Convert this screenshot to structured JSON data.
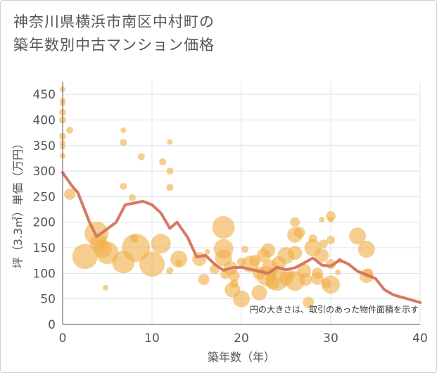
{
  "title_line1": "神奈川県横浜市南区中村町の",
  "title_line2": "築年数別中古マンション価格",
  "chart_data": {
    "type": "scatter",
    "title": "神奈川県横浜市南区中村町の築年数別中古マンション価格",
    "xlabel": "築年数（年）",
    "ylabel": "坪（3.3㎡）単価（万円）",
    "xlim": [
      0,
      40
    ],
    "ylim": [
      0,
      475
    ],
    "xticks": [
      0,
      10,
      20,
      30,
      40
    ],
    "yticks": [
      0,
      50,
      100,
      150,
      200,
      250,
      300,
      350,
      400,
      450
    ],
    "grid": true,
    "annotation": "円の大きさは、取引のあった物件面積を示す",
    "colors": {
      "bubble": "#f0b04a",
      "line": "#d4725c"
    },
    "series": [
      {
        "kind": "bubbles",
        "points": [
          {
            "x": 0,
            "y": 460,
            "s": 4
          },
          {
            "x": 0,
            "y": 438,
            "s": 4
          },
          {
            "x": 0,
            "y": 432,
            "s": 4
          },
          {
            "x": 0,
            "y": 415,
            "s": 5
          },
          {
            "x": 0,
            "y": 400,
            "s": 5
          },
          {
            "x": 0,
            "y": 368,
            "s": 5
          },
          {
            "x": 0,
            "y": 355,
            "s": 4
          },
          {
            "x": 0,
            "y": 348,
            "s": 4
          },
          {
            "x": 0,
            "y": 330,
            "s": 4
          },
          {
            "x": 0.8,
            "y": 380,
            "s": 5
          },
          {
            "x": 0.8,
            "y": 255,
            "s": 8
          },
          {
            "x": 2.5,
            "y": 133,
            "s": 18
          },
          {
            "x": 3.8,
            "y": 178,
            "s": 17
          },
          {
            "x": 4,
            "y": 160,
            "s": 12
          },
          {
            "x": 4.5,
            "y": 148,
            "s": 13
          },
          {
            "x": 5,
            "y": 140,
            "s": 16
          },
          {
            "x": 4.8,
            "y": 72,
            "s": 4
          },
          {
            "x": 6.8,
            "y": 380,
            "s": 4
          },
          {
            "x": 6.8,
            "y": 356,
            "s": 5
          },
          {
            "x": 6.8,
            "y": 270,
            "s": 5
          },
          {
            "x": 6.8,
            "y": 122,
            "s": 16
          },
          {
            "x": 7.8,
            "y": 248,
            "s": 5
          },
          {
            "x": 8.8,
            "y": 328,
            "s": 5
          },
          {
            "x": 8,
            "y": 168,
            "s": 6
          },
          {
            "x": 8.2,
            "y": 150,
            "s": 20
          },
          {
            "x": 10,
            "y": 118,
            "s": 18
          },
          {
            "x": 11,
            "y": 158,
            "s": 14
          },
          {
            "x": 11.2,
            "y": 318,
            "s": 5
          },
          {
            "x": 12,
            "y": 357,
            "s": 4
          },
          {
            "x": 12,
            "y": 300,
            "s": 5
          },
          {
            "x": 12,
            "y": 268,
            "s": 5
          },
          {
            "x": 12,
            "y": 105,
            "s": 5
          },
          {
            "x": 13,
            "y": 120,
            "s": 5
          },
          {
            "x": 13,
            "y": 128,
            "s": 12
          },
          {
            "x": 15.3,
            "y": 128,
            "s": 10
          },
          {
            "x": 15.8,
            "y": 88,
            "s": 8
          },
          {
            "x": 16.2,
            "y": 142,
            "s": 4
          },
          {
            "x": 17,
            "y": 108,
            "s": 7
          },
          {
            "x": 18,
            "y": 190,
            "s": 16
          },
          {
            "x": 18,
            "y": 148,
            "s": 14
          },
          {
            "x": 18,
            "y": 130,
            "s": 12
          },
          {
            "x": 18.2,
            "y": 98,
            "s": 7
          },
          {
            "x": 18.8,
            "y": 110,
            "s": 10
          },
          {
            "x": 19.2,
            "y": 95,
            "s": 8
          },
          {
            "x": 19,
            "y": 68,
            "s": 11
          },
          {
            "x": 19.2,
            "y": 80,
            "s": 6
          },
          {
            "x": 20,
            "y": 122,
            "s": 6
          },
          {
            "x": 20,
            "y": 50,
            "s": 12
          },
          {
            "x": 20.4,
            "y": 147,
            "s": 5
          },
          {
            "x": 21,
            "y": 118,
            "s": 12
          },
          {
            "x": 21.5,
            "y": 125,
            "s": 8
          },
          {
            "x": 22,
            "y": 100,
            "s": 9
          },
          {
            "x": 22,
            "y": 62,
            "s": 11
          },
          {
            "x": 22.5,
            "y": 135,
            "s": 10
          },
          {
            "x": 22.8,
            "y": 95,
            "s": 14
          },
          {
            "x": 23,
            "y": 145,
            "s": 10
          },
          {
            "x": 23.2,
            "y": 110,
            "s": 12
          },
          {
            "x": 23.5,
            "y": 82,
            "s": 10
          },
          {
            "x": 24,
            "y": 88,
            "s": 16
          },
          {
            "x": 24.2,
            "y": 120,
            "s": 10
          },
          {
            "x": 25,
            "y": 135,
            "s": 12
          },
          {
            "x": 25,
            "y": 90,
            "s": 10
          },
          {
            "x": 25.5,
            "y": 98,
            "s": 6
          },
          {
            "x": 26,
            "y": 85,
            "s": 14
          },
          {
            "x": 26,
            "y": 140,
            "s": 10
          },
          {
            "x": 26,
            "y": 175,
            "s": 11
          },
          {
            "x": 26,
            "y": 200,
            "s": 7
          },
          {
            "x": 26.5,
            "y": 180,
            "s": 8
          },
          {
            "x": 27,
            "y": 105,
            "s": 10
          },
          {
            "x": 27.2,
            "y": 88,
            "s": 9
          },
          {
            "x": 27.5,
            "y": 43,
            "s": 8
          },
          {
            "x": 28,
            "y": 168,
            "s": 6
          },
          {
            "x": 28,
            "y": 150,
            "s": 12
          },
          {
            "x": 28.5,
            "y": 90,
            "s": 9
          },
          {
            "x": 28.5,
            "y": 100,
            "s": 8
          },
          {
            "x": 29,
            "y": 205,
            "s": 4
          },
          {
            "x": 29,
            "y": 135,
            "s": 10
          },
          {
            "x": 29.2,
            "y": 158,
            "s": 6
          },
          {
            "x": 29.5,
            "y": 80,
            "s": 7
          },
          {
            "x": 30,
            "y": 212,
            "s": 7
          },
          {
            "x": 30,
            "y": 205,
            "s": 4
          },
          {
            "x": 30,
            "y": 165,
            "s": 6
          },
          {
            "x": 30,
            "y": 118,
            "s": 7
          },
          {
            "x": 30,
            "y": 78,
            "s": 13
          },
          {
            "x": 30.8,
            "y": 102,
            "s": 4
          },
          {
            "x": 31,
            "y": 125,
            "s": 4
          },
          {
            "x": 33,
            "y": 173,
            "s": 12
          },
          {
            "x": 34,
            "y": 147,
            "s": 12
          },
          {
            "x": 34,
            "y": 95,
            "s": 10
          },
          {
            "x": 34.2,
            "y": 100,
            "s": 7
          }
        ]
      },
      {
        "kind": "line",
        "name": "",
        "points": [
          {
            "x": 0,
            "y": 297
          },
          {
            "x": 1,
            "y": 272
          },
          {
            "x": 1.7,
            "y": 258
          },
          {
            "x": 3,
            "y": 200
          },
          {
            "x": 3.8,
            "y": 172
          },
          {
            "x": 5,
            "y": 187
          },
          {
            "x": 6,
            "y": 200
          },
          {
            "x": 7,
            "y": 234
          },
          {
            "x": 9,
            "y": 241
          },
          {
            "x": 10,
            "y": 234
          },
          {
            "x": 11,
            "y": 218
          },
          {
            "x": 12,
            "y": 188
          },
          {
            "x": 12.8,
            "y": 200
          },
          {
            "x": 14,
            "y": 170
          },
          {
            "x": 15,
            "y": 132
          },
          {
            "x": 16,
            "y": 135
          },
          {
            "x": 17,
            "y": 118
          },
          {
            "x": 18,
            "y": 106
          },
          {
            "x": 19,
            "y": 111
          },
          {
            "x": 20,
            "y": 112
          },
          {
            "x": 21,
            "y": 108
          },
          {
            "x": 22,
            "y": 104
          },
          {
            "x": 23,
            "y": 100
          },
          {
            "x": 24,
            "y": 112
          },
          {
            "x": 25,
            "y": 107
          },
          {
            "x": 26,
            "y": 111
          },
          {
            "x": 27,
            "y": 120
          },
          {
            "x": 28,
            "y": 130
          },
          {
            "x": 29,
            "y": 116
          },
          {
            "x": 30,
            "y": 114
          },
          {
            "x": 31,
            "y": 126
          },
          {
            "x": 32,
            "y": 118
          },
          {
            "x": 33,
            "y": 104
          },
          {
            "x": 34,
            "y": 97
          },
          {
            "x": 35,
            "y": 90
          },
          {
            "x": 36,
            "y": 68
          },
          {
            "x": 37,
            "y": 58
          },
          {
            "x": 38,
            "y": 53
          },
          {
            "x": 39,
            "y": 48
          },
          {
            "x": 40,
            "y": 43
          }
        ]
      }
    ]
  }
}
